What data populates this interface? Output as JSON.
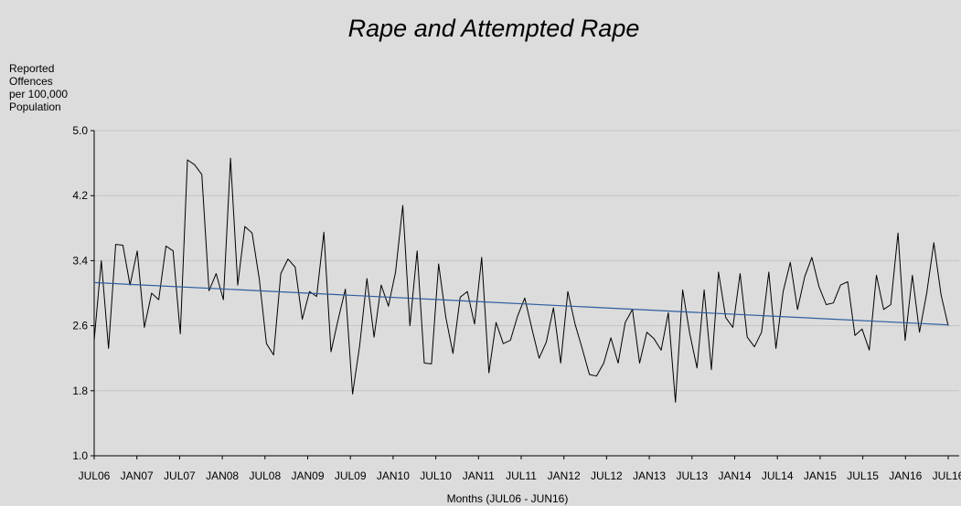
{
  "chart_data": {
    "type": "line",
    "title": "Rape and Attempted Rape",
    "ylabel": [
      "Reported",
      "Offences",
      "per 100,000",
      "Population"
    ],
    "xlabel": "Months (JUL06 - JUN16)",
    "ylim": [
      1.0,
      5.0
    ],
    "yticks": [
      "1.0",
      "1.8",
      "2.6",
      "3.4",
      "4.2",
      "5.0"
    ],
    "yticks_values": [
      1.0,
      1.8,
      2.6,
      3.4,
      4.2,
      5.0
    ],
    "xticks": [
      "JUL06",
      "JAN07",
      "JUL07",
      "JAN08",
      "JUL08",
      "JAN09",
      "JUL09",
      "JAN10",
      "JUL10",
      "JAN11",
      "JUL11",
      "JAN12",
      "JUL12",
      "JAN13",
      "JUL13",
      "JAN14",
      "JUL14",
      "JAN15",
      "JUL15",
      "JAN16",
      "JUL16"
    ],
    "x_start": "JUL06",
    "x_end": "JUN16",
    "grid": true,
    "series": [
      {
        "color": "#000000",
        "values": [
          2.42,
          3.4,
          2.32,
          3.6,
          3.59,
          3.1,
          3.52,
          2.58,
          3.0,
          2.92,
          3.58,
          3.52,
          2.5,
          4.64,
          4.58,
          4.46,
          3.03,
          3.24,
          2.92,
          4.66,
          3.1,
          3.82,
          3.74,
          3.18,
          2.38,
          2.24,
          3.24,
          3.42,
          3.32,
          2.68,
          3.02,
          2.96,
          3.75,
          2.28,
          2.68,
          3.05,
          1.76,
          2.36,
          3.18,
          2.46,
          3.1,
          2.84,
          3.26,
          4.08,
          2.6,
          3.52,
          2.14,
          2.13,
          3.36,
          2.7,
          2.26,
          2.95,
          3.02,
          2.62,
          3.44,
          2.02,
          2.64,
          2.38,
          2.42,
          2.72,
          2.94,
          2.56,
          2.2,
          2.4,
          2.82,
          2.14,
          3.02,
          2.62,
          2.32,
          2.0,
          1.98,
          2.14,
          2.45,
          2.14,
          2.64,
          2.8,
          2.14,
          2.52,
          2.44,
          2.3,
          2.76,
          1.66,
          3.04,
          2.5,
          2.08,
          3.04,
          2.06,
          3.26,
          2.7,
          2.58,
          3.24,
          2.46,
          2.34,
          2.52,
          3.26,
          2.32,
          3.02,
          3.38,
          2.8,
          3.2,
          3.44,
          3.08,
          2.86,
          2.88,
          3.1,
          3.14,
          2.48,
          2.56,
          2.3,
          3.22,
          2.8,
          2.86,
          3.74,
          2.42,
          3.22,
          2.52,
          3.0,
          3.62,
          2.98,
          2.6
        ]
      },
      {
        "color": "#2f5d9e",
        "trend": true,
        "values": [
          3.13,
          2.61
        ]
      }
    ]
  }
}
